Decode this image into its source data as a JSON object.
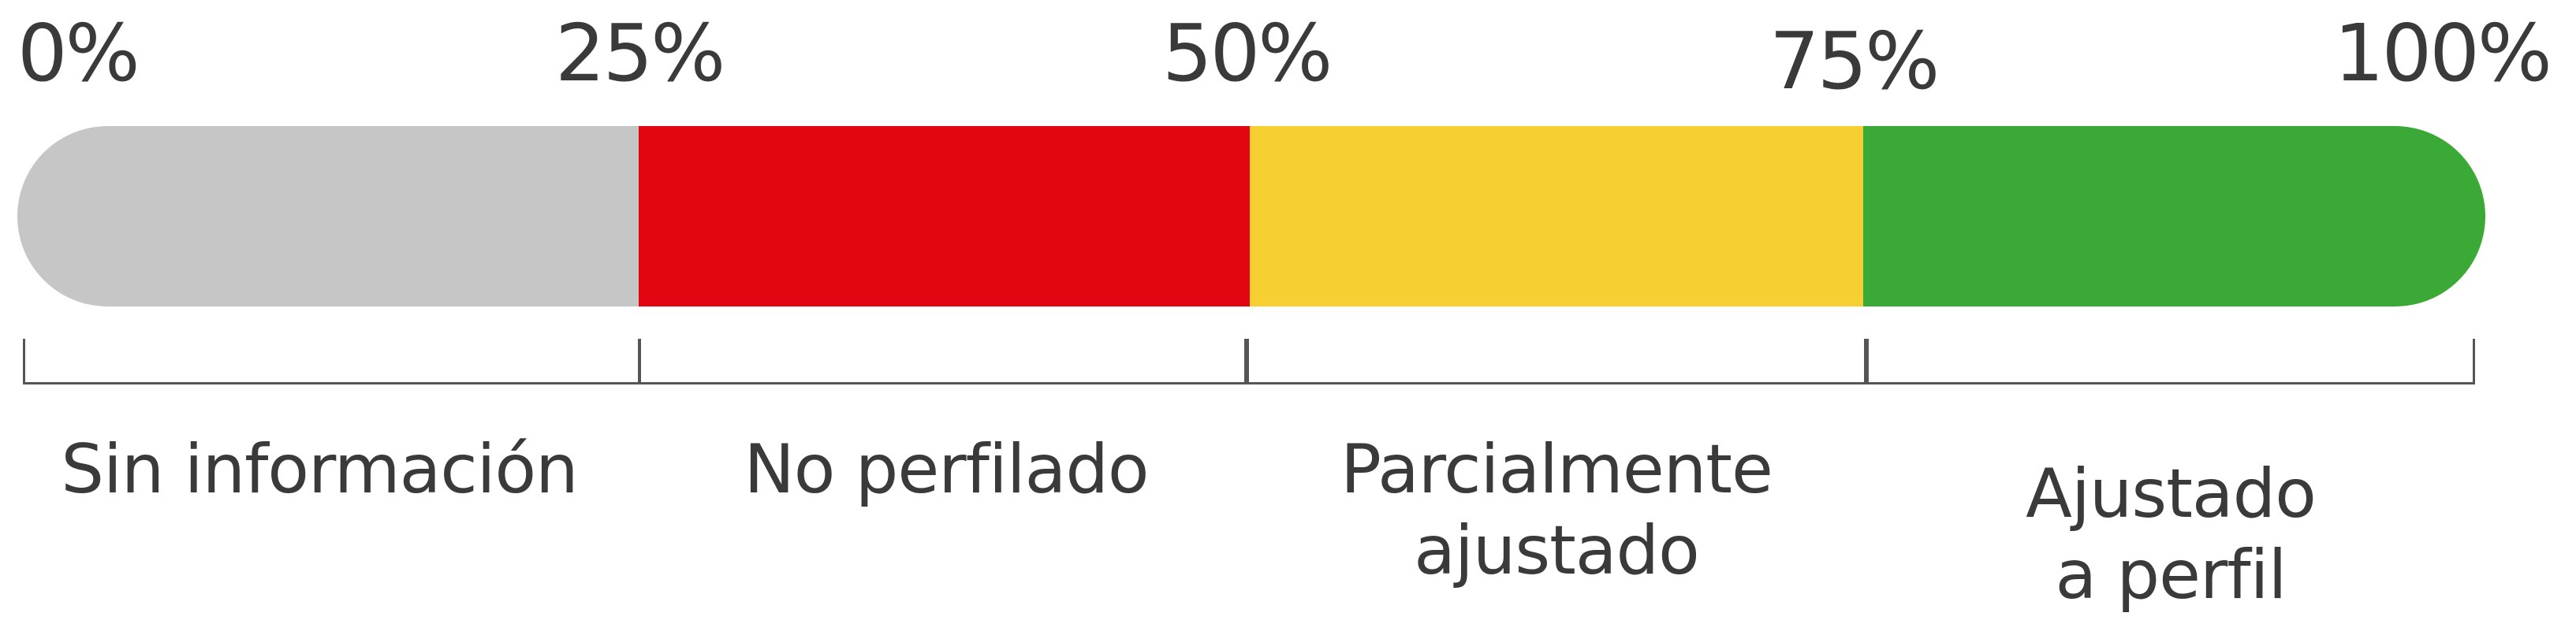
{
  "ticks": [
    "0%",
    "25%",
    "50%",
    "75%",
    "100%"
  ],
  "segments": [
    {
      "from": 0,
      "to": 25,
      "color": "#c6c6c6",
      "label_lines": [
        "Sin información"
      ]
    },
    {
      "from": 25,
      "to": 50,
      "color": "#e20613",
      "label_lines": [
        "No perfilado"
      ]
    },
    {
      "from": 50,
      "to": 75,
      "color": "#f6d033",
      "label_lines": [
        "Parcialmente",
        "ajustado"
      ]
    },
    {
      "from": 75,
      "to": 100,
      "color": "#3aa935",
      "label_lines": [
        "Ajustado",
        "a perfil"
      ]
    }
  ]
}
